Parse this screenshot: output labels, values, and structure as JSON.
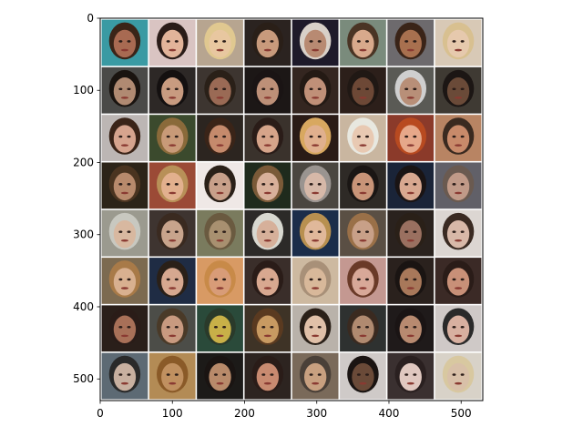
{
  "figure": {
    "background": "#ffffff",
    "image_description_hidden": true
  },
  "chart_data": {
    "type": "image-grid",
    "title": "",
    "xlabel": "",
    "ylabel": "",
    "xlim": [
      0,
      530
    ],
    "ylim": [
      530,
      0
    ],
    "grid": false,
    "legend": "none",
    "grid_rows": 8,
    "grid_cols": 8,
    "cell_size_data_units": 66,
    "separator_color": "#ffffff",
    "x_ticks": [
      0,
      100,
      200,
      300,
      400,
      500
    ],
    "y_ticks": [
      0,
      100,
      200,
      300,
      400,
      500
    ],
    "x_tick_labels": [
      "0",
      "100",
      "200",
      "300",
      "400",
      "500"
    ],
    "y_tick_labels": [
      "0",
      "100",
      "200",
      "300",
      "400",
      "500"
    ],
    "tile_palette": [
      [
        "#3a9aa3",
        "#d9c4c2",
        "#b7a590",
        "#2b2320",
        "#1e1a2a",
        "#7a8b7c",
        "#6d6a6d",
        "#d8c9b6"
      ],
      [
        "#4a4a48",
        "#2d2826",
        "#3d3530",
        "#1c1716",
        "#342620",
        "#2c1f1a",
        "#5a5a55",
        "#3f3a33"
      ],
      [
        "#bcb6b4",
        "#3b4a2d",
        "#2c2520",
        "#3a322c",
        "#2a1b16",
        "#c9b6a0",
        "#8b3a2a",
        "#b88463"
      ],
      [
        "#2c2418",
        "#9b4a36",
        "#efe8e6",
        "#1f2b1d",
        "#4a4640",
        "#2e2a26",
        "#1a2438",
        "#616068"
      ],
      [
        "#9b9a8f",
        "#3e3430",
        "#7a7b5e",
        "#2c2a28",
        "#1b2d4a",
        "#5a4f44",
        "#2a221e",
        "#dcd6d2"
      ],
      [
        "#7c6a50",
        "#1f2c44",
        "#d89a64",
        "#3a2e2a",
        "#cdb9a0",
        "#c49891",
        "#2a211d",
        "#3b2a26"
      ],
      [
        "#2a1f1a",
        "#4c4d48",
        "#2a4a3a",
        "#3e3326",
        "#b9b2aa",
        "#2e3130",
        "#1f1a1a",
        "#cfc9c7"
      ],
      [
        "#5d6a74",
        "#b38b55",
        "#1c1a18",
        "#2d2420",
        "#7a6a5a",
        "#cfcac8",
        "#3a3030",
        "#d8d2c8"
      ]
    ],
    "skin_palette": [
      [
        "#a86a52",
        "#e2b49a",
        "#e8c7a0",
        "#c89a7c",
        "#b88a72",
        "#d8a98c",
        "#a8704f",
        "#e6c9ad"
      ],
      [
        "#b08a72",
        "#c89b80",
        "#9a6a55",
        "#bd9078",
        "#c09078",
        "#6d4836",
        "#b88f78",
        "#6a4a38"
      ],
      [
        "#d6a48e",
        "#c89a78",
        "#c58a6c",
        "#d6a48a",
        "#e0b08e",
        "#e8c9b2",
        "#e6a88a",
        "#c88a6a"
      ],
      [
        "#b88a6c",
        "#e2b08e",
        "#c8a08a",
        "#d8b09a",
        "#d6b8a8",
        "#c89478",
        "#d8a890",
        "#c09a88"
      ],
      [
        "#d8b8a0",
        "#c8a48c",
        "#a89070",
        "#d6b09a",
        "#e0b89a",
        "#c8a088",
        "#9a7060",
        "#d8b8a8"
      ],
      [
        "#d8b090",
        "#d6a890",
        "#d89c78",
        "#d8a890",
        "#d8b89a",
        "#d8a898",
        "#a8785a",
        "#c89078"
      ],
      [
        "#a87058",
        "#c89a80",
        "#c8b048",
        "#c89a62",
        "#e0c0a8",
        "#b08a70",
        "#b88a70",
        "#d8b0a0"
      ],
      [
        "#c8b0a0",
        "#c09060",
        "#b88a6a",
        "#c88a70",
        "#c8a080",
        "#6a4a38",
        "#e0c8c0",
        "#d8c0a8"
      ]
    ],
    "hair_palette": [
      [
        "#3a2418",
        "#2a1c18",
        "#e0c890",
        "#2a1f18",
        "#d8d0c8",
        "#4a3424",
        "#3a2418",
        "#d8c090"
      ],
      [
        "#1a1410",
        "#141010",
        "#2a2018",
        "#1a1414",
        "#241a14",
        "#201814",
        "#cfcfcf",
        "#1c1614"
      ],
      [
        "#3a2418",
        "#8a6a3a",
        "#3a2418",
        "#2a1c18",
        "#d8a860",
        "#e8e8e0",
        "#b84a20",
        "#3a2a20"
      ],
      [
        "#4a3420",
        "#b89058",
        "#2a2018",
        "#7a5a38",
        "#9a9490",
        "#1a1614",
        "#1a1414",
        "#6a5a50"
      ],
      [
        "#c8c8c0",
        "#3a2a20",
        "#6a5a40",
        "#d8d8d0",
        "#b89050",
        "#9a7048",
        "#2a2018",
        "#3a2a22"
      ],
      [
        "#a87a48",
        "#2a2018",
        "#c88a48",
        "#2a1c18",
        "#a89078",
        "#6a3a28",
        "#1a1412",
        "#2a1c18"
      ],
      [
        "#2a1c18",
        "#4a3a28",
        "#2a3a2a",
        "#5a3a20",
        "#2a2018",
        "#3a2a20",
        "#1a1414",
        "#2a2a2a"
      ],
      [
        "#2a2a2a",
        "#8a5a28",
        "#1a1412",
        "#2a1c18",
        "#4a4038",
        "#1a1412",
        "#2a2020",
        "#d8c8a0"
      ]
    ]
  }
}
